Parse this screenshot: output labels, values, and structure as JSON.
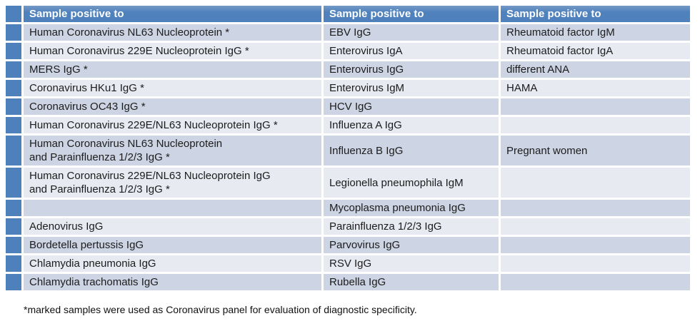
{
  "table": {
    "columns": [
      {
        "header": "Sample positive to"
      },
      {
        "header": "Sample positive to"
      },
      {
        "header": "Sample positive to"
      }
    ],
    "rows": [
      {
        "c1": "Human Coronavirus NL63 Nucleoprotein *",
        "c2": "EBV IgG",
        "c3": "Rheumatoid factor IgM"
      },
      {
        "c1": "Human Coronavirus 229E Nucleoprotein IgG *",
        "c2": "Enterovirus IgA",
        "c3": "Rheumatoid factor IgA"
      },
      {
        "c1": "MERS IgG *",
        "c2": "Enterovirus IgG",
        "c3": "different ANA"
      },
      {
        "c1": "Coronavirus HKu1 IgG *",
        "c2": "Enterovirus IgM",
        "c3": "HAMA"
      },
      {
        "c1": "Coronavirus OC43 IgG *",
        "c2": "HCV IgG",
        "c3": ""
      },
      {
        "c1": "Human Coronavirus 229E/NL63 Nucleoprotein IgG *",
        "c2": "Influenza A IgG",
        "c3": ""
      },
      {
        "c1": "Human Coronavirus NL63 Nucleoprotein\nand Parainfluenza 1/2/3 IgG *",
        "c2": "Influenza B IgG",
        "c3": "Pregnant women"
      },
      {
        "c1": "Human Coronavirus 229E/NL63 Nucleoprotein IgG\nand Parainfluenza 1/2/3 IgG *",
        "c2": "Legionella pneumophila IgM",
        "c3": ""
      },
      {
        "c1": "",
        "c2": "Mycoplasma pneumonia IgG",
        "c3": ""
      },
      {
        "c1": "Adenovirus IgG",
        "c2": "Parainfluenza 1/2/3 IgG",
        "c3": ""
      },
      {
        "c1": "Bordetella pertussis IgG",
        "c2": "Parvovirus IgG",
        "c3": ""
      },
      {
        "c1": "Chlamydia pneumonia IgG",
        "c2": "RSV IgG",
        "c3": ""
      },
      {
        "c1": "Chlamydia trachomatis IgG",
        "c2": "Rubella IgG",
        "c3": ""
      }
    ]
  },
  "footnote": "*marked samples were used as Coronavirus panel for evaluation of diagnostic specificity.",
  "colors": {
    "header_bg": "#4f81bd",
    "header_bg_top": "#7499c6",
    "marker_bg": "#4e80bc",
    "band_dark": "#cdd5e4",
    "band_light": "#e8eaf2"
  }
}
